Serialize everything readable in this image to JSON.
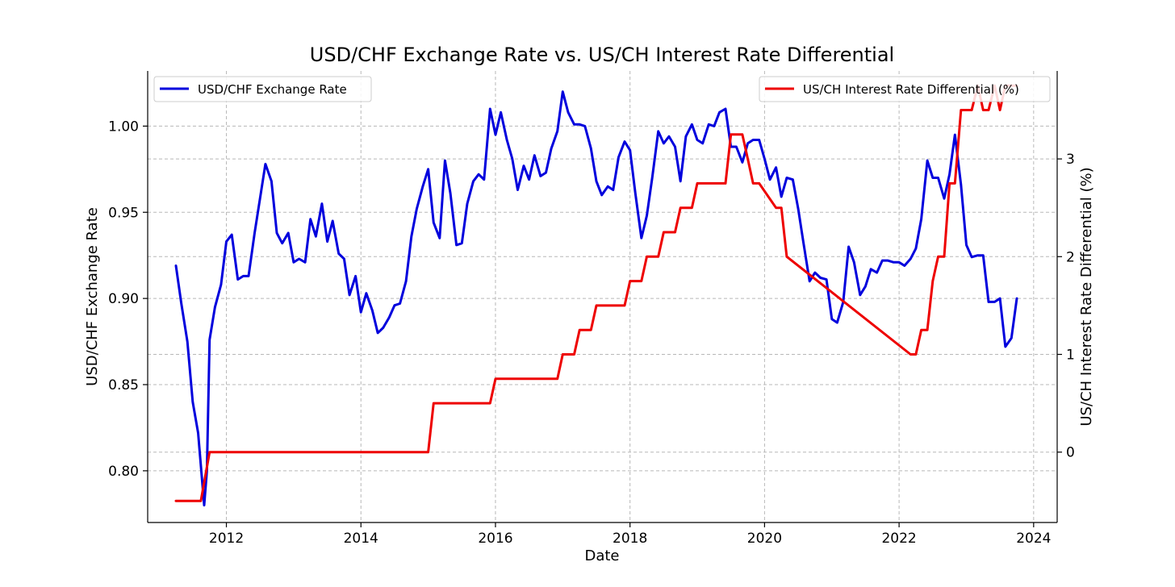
{
  "chart_data": {
    "type": "line",
    "title": "USD/CHF Exchange Rate vs. US/CH Interest Rate Differential",
    "xlabel": "Date",
    "ylabel_left": "USD/CHF Exchange Rate",
    "ylabel_right": "US/CH Interest Rate Differential (%)",
    "xlim": [
      2010.83,
      2024.35
    ],
    "ylim_left": [
      0.77,
      1.032
    ],
    "ylim_right": [
      -0.72,
      3.9
    ],
    "x_ticks": [
      2012,
      2014,
      2016,
      2018,
      2020,
      2022,
      2024
    ],
    "x_tick_labels": [
      "2012",
      "2014",
      "2016",
      "2018",
      "2020",
      "2022",
      "2024"
    ],
    "y_left_ticks": [
      0.8,
      0.85,
      0.9,
      0.95,
      1.0
    ],
    "y_left_tick_labels": [
      "0.80",
      "0.85",
      "0.90",
      "0.95",
      "1.00"
    ],
    "y_right_ticks": [
      0,
      1,
      2,
      3
    ],
    "y_right_tick_labels": [
      "0",
      "1",
      "2",
      "3"
    ],
    "grid": true,
    "series": [
      {
        "name": "USD/CHF Exchange Rate",
        "axis": "left",
        "color": "#0000dd",
        "legend_position": "top-left",
        "x": [
          2011.25,
          2011.33,
          2011.42,
          2011.5,
          2011.58,
          2011.67,
          2011.71,
          2011.75,
          2011.83,
          2011.92,
          2012.0,
          2012.08,
          2012.17,
          2012.25,
          2012.33,
          2012.42,
          2012.5,
          2012.58,
          2012.67,
          2012.75,
          2012.83,
          2012.92,
          2013.0,
          2013.08,
          2013.17,
          2013.25,
          2013.33,
          2013.42,
          2013.5,
          2013.58,
          2013.67,
          2013.75,
          2013.83,
          2013.92,
          2014.0,
          2014.08,
          2014.17,
          2014.25,
          2014.33,
          2014.42,
          2014.5,
          2014.58,
          2014.67,
          2014.75,
          2014.83,
          2014.92,
          2015.0,
          2015.08,
          2015.17,
          2015.25,
          2015.33,
          2015.42,
          2015.5,
          2015.58,
          2015.67,
          2015.75,
          2015.83,
          2015.92,
          2016.0,
          2016.08,
          2016.17,
          2016.25,
          2016.33,
          2016.42,
          2016.5,
          2016.58,
          2016.67,
          2016.75,
          2016.83,
          2016.92,
          2017.0,
          2017.08,
          2017.17,
          2017.25,
          2017.33,
          2017.42,
          2017.5,
          2017.58,
          2017.67,
          2017.75,
          2017.83,
          2017.92,
          2018.0,
          2018.08,
          2018.17,
          2018.25,
          2018.33,
          2018.42,
          2018.5,
          2018.58,
          2018.67,
          2018.75,
          2018.83,
          2018.92,
          2019.0,
          2019.08,
          2019.17,
          2019.25,
          2019.33,
          2019.42,
          2019.5,
          2019.58,
          2019.67,
          2019.75,
          2019.83,
          2019.92,
          2020.0,
          2020.08,
          2020.17,
          2020.25,
          2020.33,
          2020.42,
          2020.5,
          2020.58,
          2020.67,
          2020.75,
          2020.83,
          2020.92,
          2021.0,
          2021.08,
          2021.17,
          2021.25,
          2021.33,
          2021.42,
          2021.5,
          2021.58,
          2021.67,
          2021.75,
          2021.83,
          2021.92,
          2022.0,
          2022.08,
          2022.17,
          2022.25,
          2022.33,
          2022.42,
          2022.5,
          2022.58,
          2022.67,
          2022.75,
          2022.83,
          2022.92,
          2023.0,
          2023.08,
          2023.17,
          2023.25,
          2023.33,
          2023.42,
          2023.5,
          2023.58,
          2023.67,
          2023.75
        ],
        "y": [
          0.919,
          0.897,
          0.875,
          0.84,
          0.822,
          0.78,
          0.8,
          0.876,
          0.895,
          0.908,
          0.933,
          0.937,
          0.911,
          0.913,
          0.913,
          0.938,
          0.958,
          0.978,
          0.968,
          0.938,
          0.932,
          0.938,
          0.921,
          0.923,
          0.921,
          0.946,
          0.936,
          0.955,
          0.933,
          0.945,
          0.926,
          0.923,
          0.902,
          0.913,
          0.892,
          0.903,
          0.893,
          0.88,
          0.883,
          0.889,
          0.896,
          0.897,
          0.91,
          0.936,
          0.952,
          0.965,
          0.975,
          0.944,
          0.935,
          0.98,
          0.961,
          0.931,
          0.932,
          0.955,
          0.968,
          0.972,
          0.969,
          1.01,
          0.995,
          1.008,
          0.992,
          0.981,
          0.963,
          0.977,
          0.969,
          0.983,
          0.971,
          0.973,
          0.987,
          0.997,
          1.02,
          1.008,
          1.001,
          1.001,
          1.0,
          0.987,
          0.968,
          0.96,
          0.965,
          0.963,
          0.982,
          0.991,
          0.986,
          0.961,
          0.935,
          0.948,
          0.97,
          0.997,
          0.99,
          0.994,
          0.988,
          0.968,
          0.994,
          1.001,
          0.992,
          0.99,
          1.001,
          1.0,
          1.008,
          1.01,
          0.988,
          0.988,
          0.979,
          0.99,
          0.992,
          0.992,
          0.981,
          0.969,
          0.976,
          0.959,
          0.97,
          0.969,
          0.952,
          0.932,
          0.91,
          0.915,
          0.912,
          0.911,
          0.888,
          0.886,
          0.898,
          0.93,
          0.921,
          0.902,
          0.907,
          0.917,
          0.915,
          0.922,
          0.922,
          0.921,
          0.921,
          0.919,
          0.923,
          0.929,
          0.946,
          0.98,
          0.97,
          0.97,
          0.958,
          0.972,
          0.995,
          0.966,
          0.931,
          0.924,
          0.925,
          0.925,
          0.898,
          0.898,
          0.9,
          0.872,
          0.877,
          0.9
        ]
      },
      {
        "name": "US/CH Interest Rate Differential (%)",
        "axis": "right",
        "color": "#ee0000",
        "legend_position": "top-right",
        "x": [
          2011.25,
          2011.62,
          2011.75,
          2015.0,
          2015.08,
          2015.92,
          2016.0,
          2016.92,
          2017.0,
          2017.17,
          2017.25,
          2017.42,
          2017.5,
          2017.92,
          2018.0,
          2018.17,
          2018.25,
          2018.42,
          2018.5,
          2018.67,
          2018.75,
          2018.92,
          2019.0,
          2019.42,
          2019.5,
          2019.67,
          2019.75,
          2019.83,
          2019.92,
          2020.17,
          2020.25,
          2020.33,
          2022.17,
          2022.25,
          2022.33,
          2022.42,
          2022.5,
          2022.58,
          2022.67,
          2022.75,
          2022.83,
          2022.92,
          2023.08,
          2023.17,
          2023.25,
          2023.33,
          2023.42,
          2023.5,
          2023.58,
          2023.75
        ],
        "y": [
          -0.5,
          -0.5,
          0.0,
          0.0,
          0.5,
          0.5,
          0.75,
          0.75,
          1.0,
          1.0,
          1.25,
          1.25,
          1.5,
          1.5,
          1.75,
          1.75,
          2.0,
          2.0,
          2.25,
          2.25,
          2.5,
          2.5,
          2.75,
          2.75,
          3.25,
          3.25,
          3.0,
          2.75,
          2.75,
          2.5,
          2.5,
          2.0,
          1.0,
          1.0,
          1.25,
          1.25,
          1.75,
          2.0,
          2.0,
          2.75,
          2.75,
          3.5,
          3.5,
          3.75,
          3.5,
          3.5,
          3.75,
          3.5,
          3.75,
          3.75
        ]
      }
    ]
  }
}
